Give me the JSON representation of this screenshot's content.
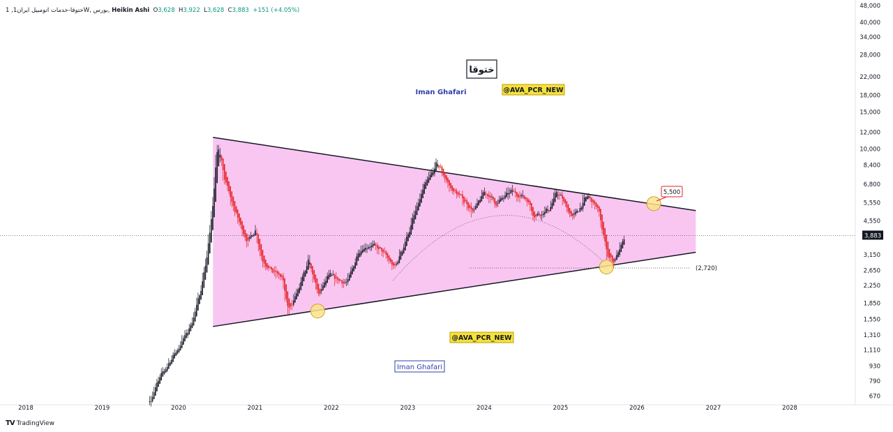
{
  "header": {
    "symbol": "1 ,ختوقا-خدمات اتومبیل ایران",
    "interval": "1W, بورس,",
    "chart_type": "Heikin Ashi",
    "o_label": "O",
    "open": "3,628",
    "h_label": "H",
    "high": "3,922",
    "l_label": "L",
    "low": "3,628",
    "c_label": "C",
    "close": "3,883",
    "change": "+151 (+4.05%)"
  },
  "footer": {
    "brand": "TradingView",
    "logo": "TV"
  },
  "colors": {
    "up": "#131722",
    "down": "#e61e1e",
    "triangle_fill": "#f9c6f2",
    "highlight": "#fbe38a",
    "tag_bg": "#f6e13a",
    "author": "#2f3fa8"
  },
  "chart_data": {
    "type": "candlestick",
    "style": "Heikin Ashi weekly",
    "scale": "log",
    "ylim": [
      650,
      48000
    ],
    "xlim": [
      2017.95,
      2028.5
    ],
    "y_ticks": [
      "48,000",
      "40,000",
      "34,000",
      "28,000",
      "22,000",
      "18,000",
      "15,000",
      "12,000",
      "10,000",
      "8,400",
      "6,800",
      "5,550",
      "4,550",
      "3,150",
      "2,650",
      "2,250",
      "1,850",
      "1,550",
      "1,310",
      "1,110",
      "930",
      "790",
      "670"
    ],
    "y_tick_values": [
      48000,
      40000,
      34000,
      28000,
      22000,
      18000,
      15000,
      12000,
      10000,
      8400,
      6800,
      5550,
      4550,
      3150,
      2650,
      2250,
      1850,
      1550,
      1310,
      1110,
      930,
      790,
      670
    ],
    "x_ticks": [
      "2018",
      "2019",
      "2020",
      "2021",
      "2022",
      "2023",
      "2024",
      "2025",
      "2026",
      "2027",
      "2028"
    ],
    "x_tick_values": [
      2018,
      2019,
      2020,
      2021,
      2022,
      2023,
      2024,
      2025,
      2026,
      2027,
      2028
    ],
    "last_price": {
      "value": 3883,
      "label": "3,883"
    },
    "price_path": [
      [
        2019.62,
        640
      ],
      [
        2019.75,
        820
      ],
      [
        2019.85,
        950
      ],
      [
        2020.0,
        1150
      ],
      [
        2020.15,
        1450
      ],
      [
        2020.25,
        1900
      ],
      [
        2020.35,
        2900
      ],
      [
        2020.42,
        4500
      ],
      [
        2020.5,
        10500
      ],
      [
        2020.6,
        7000
      ],
      [
        2020.75,
        4800
      ],
      [
        2020.9,
        3600
      ],
      [
        2021.0,
        4200
      ],
      [
        2021.08,
        3000
      ],
      [
        2021.2,
        2650
      ],
      [
        2021.35,
        2450
      ],
      [
        2021.42,
        1700
      ],
      [
        2021.55,
        2100
      ],
      [
        2021.7,
        2950
      ],
      [
        2021.82,
        2000
      ],
      [
        2021.95,
        2500
      ],
      [
        2022.2,
        2300
      ],
      [
        2022.35,
        3300
      ],
      [
        2022.5,
        3500
      ],
      [
        2022.65,
        3300
      ],
      [
        2022.82,
        2700
      ],
      [
        2023.0,
        4000
      ],
      [
        2023.2,
        6500
      ],
      [
        2023.38,
        8600
      ],
      [
        2023.55,
        6500
      ],
      [
        2023.75,
        5600
      ],
      [
        2023.85,
        5000
      ],
      [
        2024.0,
        6300
      ],
      [
        2024.15,
        5500
      ],
      [
        2024.35,
        6300
      ],
      [
        2024.55,
        5800
      ],
      [
        2024.65,
        4800
      ],
      [
        2024.85,
        5200
      ],
      [
        2024.95,
        6300
      ],
      [
        2025.15,
        4700
      ],
      [
        2025.35,
        6000
      ],
      [
        2025.48,
        5200
      ],
      [
        2025.6,
        3200
      ],
      [
        2025.68,
        2900
      ],
      [
        2025.78,
        3400
      ],
      [
        2025.85,
        3883
      ]
    ],
    "triangle": {
      "upper": [
        [
          2020.45,
          11350
        ],
        [
          2026.77,
          5100
        ]
      ],
      "lower": [
        [
          2020.45,
          1435
        ],
        [
          2026.77,
          3230
        ]
      ]
    },
    "annotations": {
      "target_label": "5,500",
      "support_label": "(2,720)",
      "support_value": 2720,
      "title_box": "ختوقا",
      "author_1": "Iman Ghafari",
      "author_2": "Iman Ghafari",
      "tag_1": "@AVA_PCR_NEW",
      "tag_2": "@AVA_PCR_NEW",
      "circles": [
        [
          2021.82,
          1700
        ],
        [
          2025.6,
          2750
        ],
        [
          2026.22,
          5500
        ]
      ]
    }
  }
}
